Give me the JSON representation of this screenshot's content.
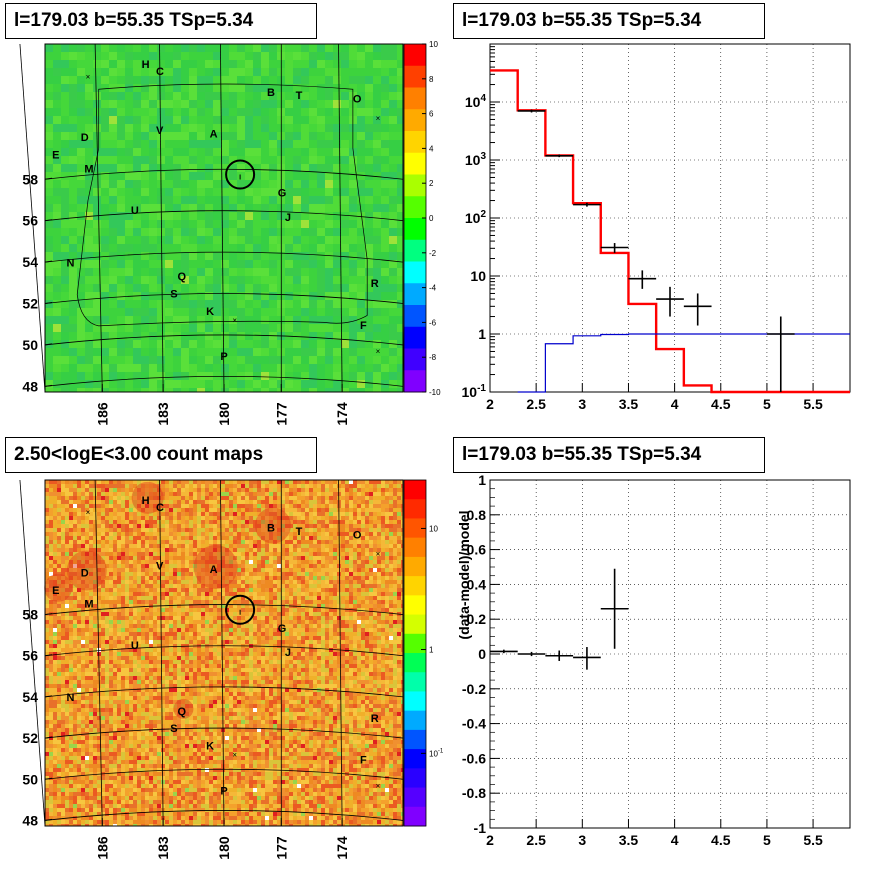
{
  "panels": {
    "tl_title": "l=179.03 b=55.35 TSp=5.34",
    "tr_title": "l=179.03 b=55.35 TSp=5.34",
    "bl_title": "2.50<logE<3.00 count maps",
    "br_title": "l=179.03 b=55.35 TSp=5.34"
  },
  "source_labels": [
    "H",
    "C",
    "B",
    "T",
    "O",
    "V",
    "A",
    "D",
    "E",
    "M",
    "G",
    "J",
    "U",
    "N",
    "Q",
    "R",
    "S",
    "K",
    "F",
    "P"
  ],
  "chart_data": [
    {
      "type": "heatmap",
      "id": "residual-map",
      "title": "l=179.03 b=55.35 TSp=5.34",
      "x_ticks": [
        "186",
        "183",
        "180",
        "177",
        "174"
      ],
      "y_ticks": [
        "48",
        "50",
        "52",
        "54",
        "56",
        "58"
      ],
      "colorbar": {
        "min": -10,
        "max": 10,
        "ticks": [
          "10",
          "8",
          "6",
          "4",
          "2",
          "0",
          "-2",
          "-4",
          "-6",
          "-8",
          "-10"
        ]
      },
      "colors": {
        "background": "#3dd33d"
      }
    },
    {
      "type": "line",
      "id": "spectrum",
      "title": "l=179.03 b=55.35 TSp=5.34",
      "xlim": [
        2,
        5.9
      ],
      "ylim": [
        0.1,
        100000
      ],
      "yscale": "log",
      "x_ticks": [
        "2",
        "2.5",
        "3",
        "3.5",
        "4",
        "4.5",
        "5",
        "5.5"
      ],
      "y_ticks": [
        "10^-1",
        "1",
        "10",
        "10^2",
        "10^3",
        "10^4"
      ],
      "series": [
        {
          "color": "#ff0000",
          "steps": [
            [
              2,
              2.3,
              35000
            ],
            [
              2.3,
              2.6,
              7200
            ],
            [
              2.6,
              2.9,
              1200
            ],
            [
              2.9,
              3.2,
              180
            ],
            [
              3.2,
              3.5,
              25
            ],
            [
              3.5,
              3.8,
              3.3
            ],
            [
              3.8,
              4.1,
              0.55
            ],
            [
              4.1,
              4.4,
              0.13
            ],
            [
              4.4,
              5.9,
              0.1
            ]
          ]
        },
        {
          "color": "#0000cc",
          "steps": [
            [
              2.3,
              2.6,
              0.1
            ],
            [
              2.6,
              2.9,
              0.68
            ],
            [
              2.9,
              3.2,
              0.93
            ],
            [
              3.2,
              3.5,
              0.98
            ],
            [
              3.5,
              5.9,
              1.0
            ]
          ]
        },
        {
          "color": "#000000",
          "points": [
            [
              2.45,
              7000,
              2.3,
              2.6,
              6600,
              7400
            ],
            [
              2.75,
              1180,
              2.6,
              2.9,
              1120,
              1240
            ],
            [
              3.05,
              170,
              2.9,
              3.2,
              157,
              183
            ],
            [
              3.35,
              31,
              3.2,
              3.5,
              25,
              37
            ],
            [
              3.65,
              9,
              3.5,
              3.8,
              6,
              12.5
            ],
            [
              3.95,
              4,
              3.8,
              4.1,
              2,
              6.5
            ],
            [
              4.25,
              3,
              4.1,
              4.4,
              1.4,
              5
            ],
            [
              5.15,
              1,
              5.0,
              5.3,
              0.1,
              2
            ]
          ]
        }
      ]
    },
    {
      "type": "heatmap",
      "id": "count-map",
      "title": "2.50<logE<3.00 count maps",
      "x_ticks": [
        "186",
        "183",
        "180",
        "177",
        "174"
      ],
      "y_ticks": [
        "48",
        "50",
        "52",
        "54",
        "56",
        "58"
      ],
      "colorbar": {
        "scale": "log",
        "ticks": [
          "10",
          "1",
          "10^-1"
        ]
      },
      "colors": {
        "background": "#f0a030"
      }
    },
    {
      "type": "scatter",
      "id": "residual",
      "title": "l=179.03 b=55.35 TSp=5.34",
      "ylabel": "(data-model)/model",
      "xlim": [
        2,
        5.9
      ],
      "ylim": [
        -1,
        1
      ],
      "x_ticks": [
        "2",
        "2.5",
        "3",
        "3.5",
        "4",
        "4.5",
        "5",
        "5.5"
      ],
      "y_ticks": [
        "1",
        "0.8",
        "0.6",
        "0.4",
        "0.2",
        "0",
        "-0.2",
        "-0.4",
        "-0.6",
        "-0.8",
        "-1"
      ],
      "points": [
        [
          2.15,
          0.015,
          2.0,
          2.3,
          0.005,
          0.025
        ],
        [
          2.45,
          0.0,
          2.3,
          2.6,
          -0.012,
          0.012
        ],
        [
          2.75,
          -0.01,
          2.6,
          2.9,
          -0.04,
          0.02
        ],
        [
          3.05,
          -0.02,
          2.9,
          3.2,
          -0.09,
          0.04
        ],
        [
          3.35,
          0.26,
          3.2,
          3.5,
          0.03,
          0.49
        ]
      ]
    }
  ]
}
